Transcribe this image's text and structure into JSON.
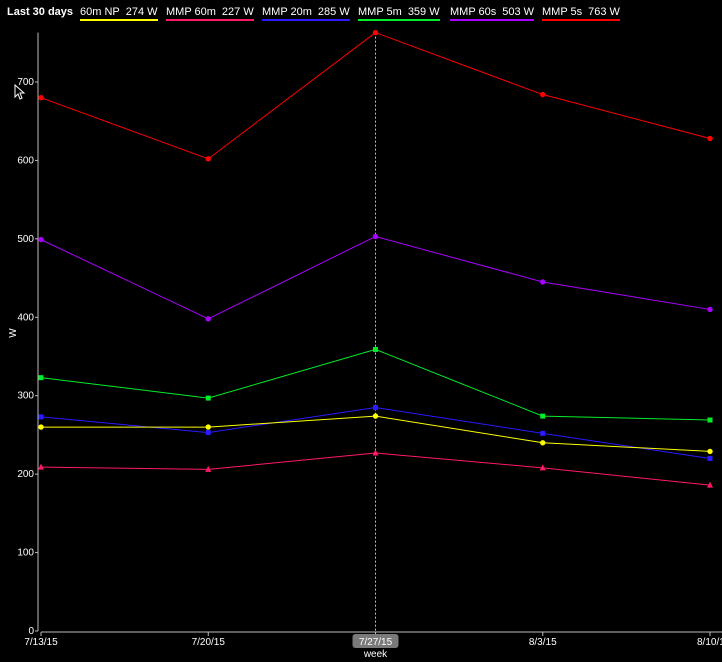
{
  "header": {
    "period_label": "Last 30 days"
  },
  "legend": [
    {
      "label": "60m NP",
      "value": "274 W",
      "color": "#ffff00"
    },
    {
      "label": "MMP 60m",
      "value": "227 W",
      "color": "#ff1a66"
    },
    {
      "label": "MMP 20m",
      "value": "285 W",
      "color": "#2a1aff"
    },
    {
      "label": "MMP 5m",
      "value": "359 W",
      "color": "#00ee2a"
    },
    {
      "label": "MMP 60s",
      "value": "503 W",
      "color": "#aa00ff"
    },
    {
      "label": "MMP 5s",
      "value": "763 W",
      "color": "#ff0000"
    }
  ],
  "chart_data": {
    "type": "line",
    "categories": [
      "7/13/15",
      "7/20/15",
      "7/27/15",
      "8/3/15",
      "8/10/1"
    ],
    "highlighted_category": "7/27/15",
    "xlabel": "week",
    "ylabel": "W",
    "ylim": [
      0,
      763
    ],
    "yticks": [
      0,
      100,
      200,
      300,
      400,
      500,
      600,
      700
    ],
    "grid": false,
    "series": [
      {
        "name": "MMP 5s",
        "color": "#ff0000",
        "marker": "circle",
        "values": [
          680,
          602,
          763,
          684,
          628
        ]
      },
      {
        "name": "MMP 60s",
        "color": "#aa00ff",
        "marker": "circle",
        "values": [
          499,
          398,
          503,
          445,
          410
        ]
      },
      {
        "name": "MMP 5m",
        "color": "#00ee2a",
        "marker": "square",
        "values": [
          323,
          297,
          359,
          274,
          269
        ]
      },
      {
        "name": "MMP 20m",
        "color": "#2a1aff",
        "marker": "square",
        "values": [
          273,
          253,
          285,
          252,
          220
        ]
      },
      {
        "name": "60m NP",
        "color": "#ffff00",
        "marker": "circle",
        "values": [
          260,
          260,
          274,
          240,
          229
        ]
      },
      {
        "name": "MMP 60m",
        "color": "#ff1a66",
        "marker": "triangle",
        "values": [
          209,
          206,
          227,
          208,
          186
        ]
      }
    ]
  }
}
